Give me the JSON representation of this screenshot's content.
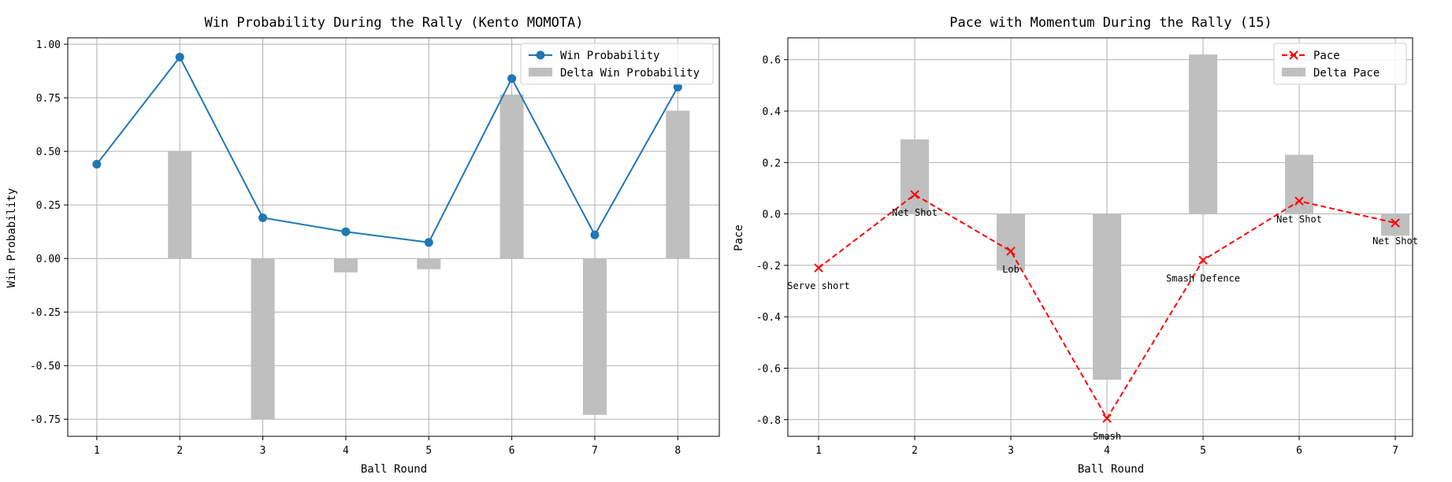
{
  "chart_data": [
    {
      "type": "line+bar",
      "title": "Win Probability During the Rally (Kento MOMOTA)",
      "xlabel": "Ball Round",
      "ylabel": "Win Probability",
      "x": [
        1,
        2,
        3,
        4,
        5,
        6,
        7,
        8
      ],
      "xticks": [
        "1",
        "2",
        "3",
        "4",
        "5",
        "6",
        "7",
        "8"
      ],
      "xlim": [
        0.65,
        8.5
      ],
      "ylim": [
        -0.83,
        1.03
      ],
      "yticks": [
        "1.00",
        "0.75",
        "0.50",
        "0.25",
        "0.00",
        "-0.25",
        "-0.50",
        "-0.75"
      ],
      "ytick_values": [
        1.0,
        0.75,
        0.5,
        0.25,
        0.0,
        -0.25,
        -0.5,
        -0.75
      ],
      "grid": true,
      "legend": "upper right",
      "series": [
        {
          "name": "Win Probability",
          "kind": "line",
          "marker": "circle",
          "color": "#1f77b4",
          "values": [
            0.44,
            0.94,
            0.19,
            0.125,
            0.075,
            0.84,
            0.11,
            0.8
          ]
        },
        {
          "name": "Delta Win Probability",
          "kind": "bar",
          "color": "#bfbfbf",
          "values": [
            0.0,
            0.5,
            -0.75,
            -0.065,
            -0.05,
            0.765,
            -0.73,
            0.69
          ]
        }
      ]
    },
    {
      "type": "line+bar",
      "title": "Pace with Momentum During the Rally (15)",
      "xlabel": "Ball Round",
      "ylabel": "Pace",
      "x": [
        1,
        2,
        3,
        4,
        5,
        6,
        7
      ],
      "xticks": [
        "1",
        "2",
        "3",
        "4",
        "5",
        "6",
        "7"
      ],
      "xlim": [
        0.68,
        7.18
      ],
      "ylim": [
        -0.865,
        0.685
      ],
      "yticks": [
        "0.6",
        "0.4",
        "0.2",
        "0.0",
        "-0.2",
        "-0.4",
        "-0.6",
        "-0.8"
      ],
      "ytick_values": [
        0.6,
        0.4,
        0.2,
        0.0,
        -0.2,
        -0.4,
        -0.6,
        -0.8
      ],
      "grid": true,
      "legend": "upper right",
      "series": [
        {
          "name": "Pace",
          "kind": "line",
          "style": "dashed",
          "marker": "x",
          "color": "#ff0000",
          "values": [
            -0.21,
            0.075,
            -0.145,
            -0.795,
            -0.18,
            0.05,
            -0.035
          ]
        },
        {
          "name": "Delta Pace",
          "kind": "bar",
          "color": "#bfbfbf",
          "values": [
            0.0,
            0.29,
            -0.22,
            -0.645,
            0.62,
            0.23,
            -0.085
          ]
        }
      ],
      "annotations": [
        "Serve short",
        "Net Shot",
        "Lob",
        "Smash",
        "Smash Defence",
        "Net Shot",
        "Net Shot"
      ]
    }
  ]
}
